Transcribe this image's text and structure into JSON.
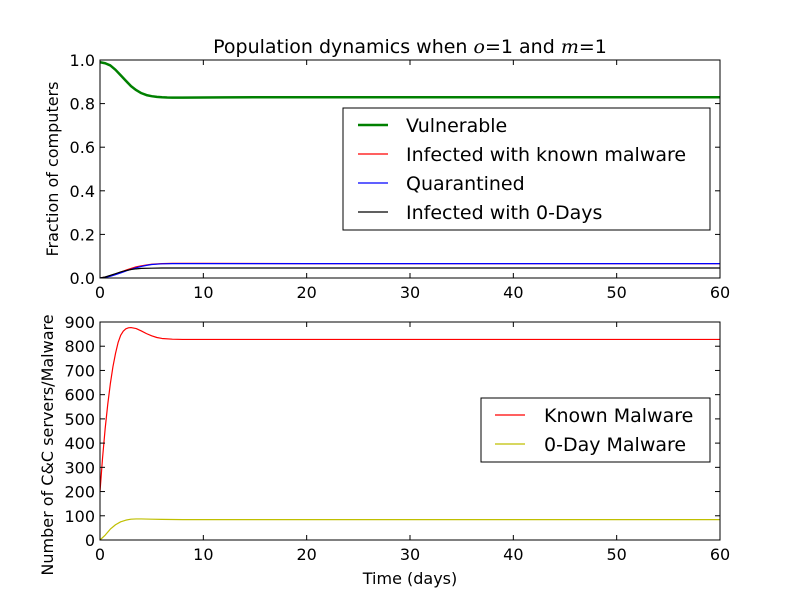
{
  "chart_data": [
    {
      "type": "line",
      "title_prefix": "Population dynamics when ",
      "title_math_1": "o",
      "title_eq_1": "=1",
      "title_mid": " and ",
      "title_math_2": "m",
      "title_eq_2": "=1",
      "xlabel": "",
      "ylabel": "Fraction of computers",
      "xlim": [
        0,
        60
      ],
      "ylim": [
        0,
        1.0
      ],
      "xticks": [
        "0",
        "10",
        "20",
        "30",
        "40",
        "50",
        "60"
      ],
      "yticks": [
        "0.0",
        "0.2",
        "0.4",
        "0.6",
        "0.8",
        "1.0"
      ],
      "grid": false,
      "legend_position": "center-right",
      "series": [
        {
          "name": "Vulnerable",
          "color": "#008000",
          "width": 2.5,
          "points": [
            [
              0,
              0.99
            ],
            [
              0.5,
              0.985
            ],
            [
              1,
              0.975
            ],
            [
              1.5,
              0.955
            ],
            [
              2,
              0.93
            ],
            [
              2.5,
              0.905
            ],
            [
              3,
              0.88
            ],
            [
              3.5,
              0.862
            ],
            [
              4,
              0.848
            ],
            [
              4.5,
              0.839
            ],
            [
              5,
              0.834
            ],
            [
              5.5,
              0.831
            ],
            [
              6,
              0.829
            ],
            [
              6.5,
              0.828
            ],
            [
              7,
              0.8275
            ],
            [
              8,
              0.8275
            ],
            [
              10,
              0.828
            ],
            [
              12,
              0.8285
            ],
            [
              15,
              0.829
            ],
            [
              20,
              0.829
            ],
            [
              30,
              0.829
            ],
            [
              40,
              0.829
            ],
            [
              50,
              0.829
            ],
            [
              60,
              0.829
            ]
          ]
        },
        {
          "name": "Infected with known malware",
          "color": "#ff0000",
          "width": 1.2,
          "points": [
            [
              0,
              0.0
            ],
            [
              0.5,
              0.004
            ],
            [
              1,
              0.01
            ],
            [
              1.5,
              0.018
            ],
            [
              2,
              0.027
            ],
            [
              2.5,
              0.036
            ],
            [
              3,
              0.044
            ],
            [
              3.5,
              0.051
            ],
            [
              4,
              0.056
            ],
            [
              4.5,
              0.06
            ],
            [
              5,
              0.063
            ],
            [
              6,
              0.066
            ],
            [
              7,
              0.067
            ],
            [
              8,
              0.067
            ],
            [
              10,
              0.067
            ],
            [
              20,
              0.066
            ],
            [
              30,
              0.066
            ],
            [
              40,
              0.066
            ],
            [
              50,
              0.066
            ],
            [
              60,
              0.066
            ]
          ]
        },
        {
          "name": "Quarantined",
          "color": "#0000ff",
          "width": 1.2,
          "points": [
            [
              0,
              0.0
            ],
            [
              0.5,
              0.003
            ],
            [
              1,
              0.008
            ],
            [
              1.5,
              0.015
            ],
            [
              2,
              0.023
            ],
            [
              2.5,
              0.032
            ],
            [
              3,
              0.04
            ],
            [
              3.5,
              0.047
            ],
            [
              4,
              0.053
            ],
            [
              4.5,
              0.058
            ],
            [
              5,
              0.062
            ],
            [
              6,
              0.065
            ],
            [
              7,
              0.066
            ],
            [
              8,
              0.066
            ],
            [
              10,
              0.066
            ],
            [
              20,
              0.066
            ],
            [
              30,
              0.066
            ],
            [
              40,
              0.066
            ],
            [
              50,
              0.066
            ],
            [
              60,
              0.066
            ]
          ]
        },
        {
          "name": "Infected with 0-Days",
          "color": "#000000",
          "width": 1.2,
          "points": [
            [
              0,
              0.0
            ],
            [
              0.5,
              0.005
            ],
            [
              1,
              0.012
            ],
            [
              1.5,
              0.02
            ],
            [
              2,
              0.028
            ],
            [
              2.5,
              0.034
            ],
            [
              3,
              0.039
            ],
            [
              3.5,
              0.042
            ],
            [
              4,
              0.044
            ],
            [
              5,
              0.045
            ],
            [
              6,
              0.046
            ],
            [
              8,
              0.046
            ],
            [
              10,
              0.046
            ],
            [
              20,
              0.046
            ],
            [
              30,
              0.046
            ],
            [
              40,
              0.046
            ],
            [
              50,
              0.046
            ],
            [
              60,
              0.046
            ]
          ]
        }
      ]
    },
    {
      "type": "line",
      "title": "",
      "xlabel": "Time (days)",
      "ylabel": "Number of C&C servers/Malware",
      "xlim": [
        0,
        60
      ],
      "ylim": [
        0,
        900
      ],
      "xticks": [
        "0",
        "10",
        "20",
        "30",
        "40",
        "50",
        "60"
      ],
      "yticks": [
        "0",
        "100",
        "200",
        "300",
        "400",
        "500",
        "600",
        "700",
        "800",
        "900"
      ],
      "grid": false,
      "legend_position": "center-right",
      "series": [
        {
          "name": "Known Malware",
          "color": "#ff0000",
          "width": 1.2,
          "points": [
            [
              0,
              200
            ],
            [
              0.25,
              340
            ],
            [
              0.5,
              460
            ],
            [
              0.75,
              560
            ],
            [
              1,
              645
            ],
            [
              1.25,
              715
            ],
            [
              1.5,
              770
            ],
            [
              1.75,
              815
            ],
            [
              2,
              845
            ],
            [
              2.25,
              862
            ],
            [
              2.5,
              872
            ],
            [
              2.75,
              876
            ],
            [
              3,
              877
            ],
            [
              3.5,
              873
            ],
            [
              4,
              863
            ],
            [
              4.5,
              852
            ],
            [
              5,
              843
            ],
            [
              5.5,
              836
            ],
            [
              6,
              832
            ],
            [
              7,
              829
            ],
            [
              8,
              828
            ],
            [
              10,
              828
            ],
            [
              20,
              828
            ],
            [
              30,
              828
            ],
            [
              40,
              828
            ],
            [
              50,
              828
            ],
            [
              60,
              828
            ]
          ]
        },
        {
          "name": "0-Day Malware",
          "color": "#bfbf00",
          "width": 1.2,
          "points": [
            [
              0,
              0
            ],
            [
              0.5,
              20
            ],
            [
              1,
              45
            ],
            [
              1.5,
              63
            ],
            [
              2,
              75
            ],
            [
              2.5,
              82
            ],
            [
              3,
              86
            ],
            [
              3.5,
              87
            ],
            [
              4,
              87
            ],
            [
              5,
              86
            ],
            [
              6,
              85
            ],
            [
              8,
              84
            ],
            [
              10,
              84
            ],
            [
              20,
              84
            ],
            [
              30,
              84
            ],
            [
              40,
              84
            ],
            [
              50,
              84
            ],
            [
              60,
              84
            ]
          ]
        }
      ]
    }
  ]
}
